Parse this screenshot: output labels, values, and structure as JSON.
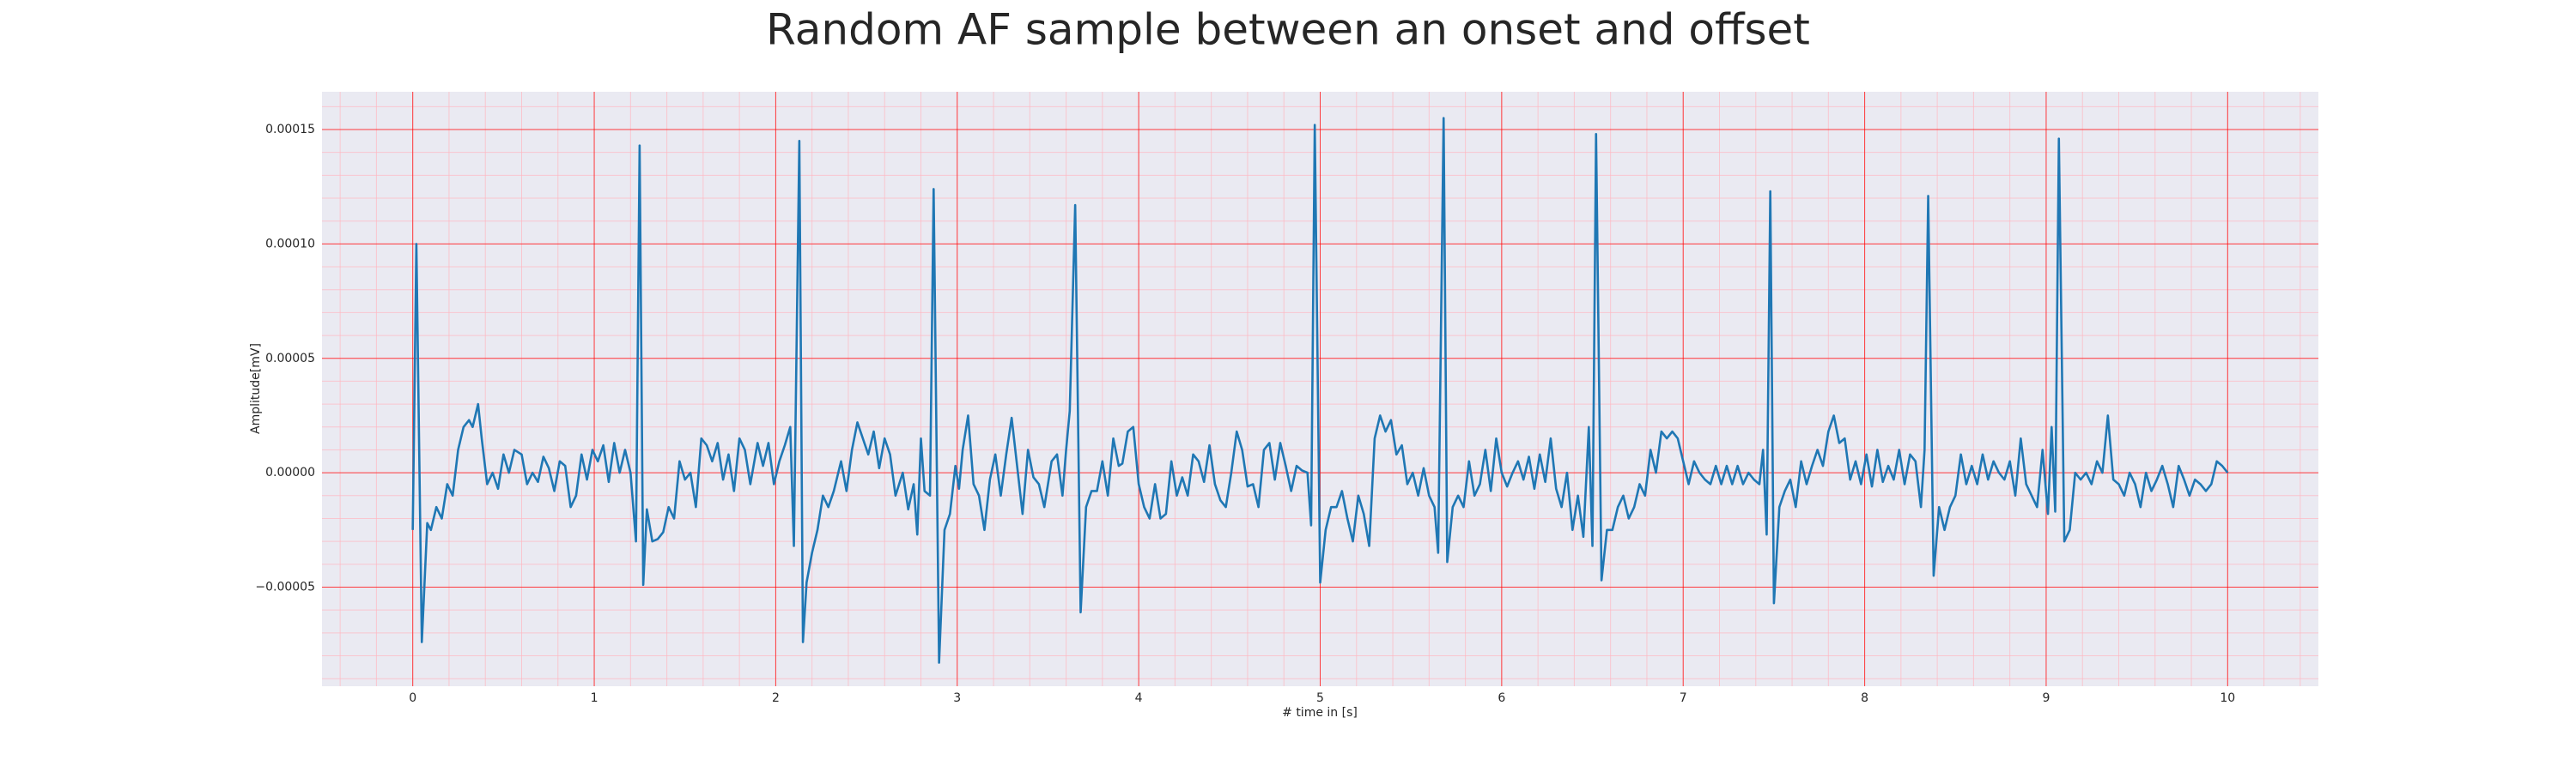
{
  "chart_data": {
    "type": "line",
    "title": "Random AF sample between an onset and offset",
    "xlabel": "# time in [s]",
    "ylabel": "Amplitude[mV]",
    "color": "#1f77b4",
    "grid": true,
    "grid_color": "#ff0000",
    "minor_grid": true,
    "minor_grid_color": "#ffb6c1",
    "background": "#eaeaf2",
    "xlim": [
      -0.5,
      10.5
    ],
    "ylim": [
      -9.33e-05,
      0.0001665
    ],
    "xticks": [
      0,
      1,
      2,
      3,
      4,
      5,
      6,
      7,
      8,
      9,
      10
    ],
    "yticks": [
      {
        "value": -5e-05,
        "label": "−0.00005"
      },
      {
        "value": 0,
        "label": "0.00000"
      },
      {
        "value": 5e-05,
        "label": "0.00005"
      },
      {
        "value": 0.0001,
        "label": "0.00010"
      },
      {
        "value": 0.00015,
        "label": "0.00015"
      }
    ],
    "x": [
      0,
      0.02,
      0.05,
      0.08,
      0.1,
      0.13,
      0.16,
      0.19,
      0.22,
      0.25,
      0.28,
      0.31,
      0.33,
      0.36,
      0.38,
      0.41,
      0.44,
      0.47,
      0.5,
      0.53,
      0.56,
      0.6,
      0.63,
      0.66,
      0.69,
      0.72,
      0.75,
      0.78,
      0.81,
      0.84,
      0.87,
      0.9,
      0.93,
      0.96,
      0.99,
      1.02,
      1.05,
      1.08,
      1.11,
      1.14,
      1.17,
      1.2,
      1.23,
      1.25,
      1.27,
      1.29,
      1.32,
      1.35,
      1.38,
      1.41,
      1.44,
      1.47,
      1.5,
      1.53,
      1.56,
      1.59,
      1.62,
      1.65,
      1.68,
      1.71,
      1.74,
      1.77,
      1.8,
      1.83,
      1.86,
      1.9,
      1.93,
      1.96,
      1.99,
      2.02,
      2.05,
      2.08,
      2.1,
      2.13,
      2.15,
      2.17,
      2.2,
      2.23,
      2.26,
      2.29,
      2.32,
      2.36,
      2.39,
      2.42,
      2.45,
      2.48,
      2.51,
      2.54,
      2.57,
      2.6,
      2.63,
      2.66,
      2.7,
      2.73,
      2.76,
      2.78,
      2.8,
      2.82,
      2.85,
      2.87,
      2.9,
      2.93,
      2.96,
      2.99,
      3.01,
      3.03,
      3.06,
      3.09,
      3.12,
      3.15,
      3.18,
      3.21,
      3.24,
      3.27,
      3.3,
      3.33,
      3.36,
      3.39,
      3.42,
      3.45,
      3.48,
      3.52,
      3.55,
      3.58,
      3.6,
      3.62,
      3.65,
      3.68,
      3.71,
      3.74,
      3.77,
      3.8,
      3.83,
      3.86,
      3.89,
      3.91,
      3.94,
      3.97,
      4.0,
      4.03,
      4.06,
      4.09,
      4.12,
      4.15,
      4.18,
      4.21,
      4.24,
      4.27,
      4.3,
      4.33,
      4.36,
      4.39,
      4.42,
      4.45,
      4.48,
      4.51,
      4.54,
      4.57,
      4.6,
      4.63,
      4.66,
      4.69,
      4.72,
      4.75,
      4.78,
      4.81,
      4.84,
      4.87,
      4.9,
      4.93,
      4.95,
      4.97,
      5.0,
      5.03,
      5.06,
      5.09,
      5.12,
      5.15,
      5.18,
      5.21,
      5.24,
      5.27,
      5.3,
      5.33,
      5.36,
      5.39,
      5.42,
      5.45,
      5.48,
      5.51,
      5.54,
      5.57,
      5.6,
      5.63,
      5.65,
      5.68,
      5.7,
      5.73,
      5.76,
      5.79,
      5.82,
      5.85,
      5.88,
      5.91,
      5.94,
      5.97,
      6.0,
      6.03,
      6.06,
      6.09,
      6.12,
      6.15,
      6.18,
      6.21,
      6.24,
      6.27,
      6.3,
      6.33,
      6.36,
      6.39,
      6.42,
      6.45,
      6.48,
      6.5,
      6.52,
      6.55,
      6.58,
      6.61,
      6.64,
      6.67,
      6.7,
      6.73,
      6.76,
      6.79,
      6.82,
      6.85,
      6.88,
      6.91,
      6.94,
      6.97,
      7.0,
      7.03,
      7.06,
      7.09,
      7.12,
      7.15,
      7.18,
      7.21,
      7.24,
      7.27,
      7.3,
      7.33,
      7.36,
      7.39,
      7.42,
      7.44,
      7.46,
      7.48,
      7.5,
      7.53,
      7.56,
      7.59,
      7.62,
      7.65,
      7.68,
      7.71,
      7.74,
      7.77,
      7.8,
      7.83,
      7.86,
      7.89,
      7.92,
      7.95,
      7.98,
      8.01,
      8.04,
      8.07,
      8.1,
      8.13,
      8.16,
      8.19,
      8.22,
      8.25,
      8.28,
      8.31,
      8.33,
      8.35,
      8.38,
      8.41,
      8.44,
      8.47,
      8.5,
      8.53,
      8.56,
      8.59,
      8.62,
      8.65,
      8.68,
      8.71,
      8.74,
      8.77,
      8.8,
      8.83,
      8.86,
      8.89,
      8.92,
      8.95,
      8.98,
      9.01,
      9.03,
      9.05,
      9.07,
      9.1,
      9.13,
      9.16,
      9.19,
      9.22,
      9.25,
      9.28,
      9.31,
      9.34,
      9.37,
      9.4,
      9.43,
      9.46,
      9.49,
      9.52,
      9.55,
      9.58,
      9.61,
      9.64,
      9.67,
      9.7,
      9.73,
      9.76,
      9.79,
      9.82,
      9.85,
      9.88,
      9.91,
      9.94,
      9.97,
      10.0
    ],
    "values": [
      -2.5e-05,
      0.0001,
      -7.4e-05,
      -2.2e-05,
      -2.5e-05,
      -1.5e-05,
      -2e-05,
      -5e-06,
      -1e-05,
      1e-05,
      2e-05,
      2.3e-05,
      2e-05,
      3e-05,
      1.5e-05,
      -5e-06,
      0,
      -7e-06,
      8e-06,
      0,
      1e-05,
      8e-06,
      -5e-06,
      0,
      -4e-06,
      7e-06,
      2e-06,
      -8e-06,
      5e-06,
      3e-06,
      -1.5e-05,
      -1e-05,
      8e-06,
      -3e-06,
      1e-05,
      5e-06,
      1.2e-05,
      -4e-06,
      1.3e-05,
      0,
      1e-05,
      0,
      -3e-05,
      0.000143,
      -4.9e-05,
      -1.6e-05,
      -3e-05,
      -2.9e-05,
      -2.6e-05,
      -1.5e-05,
      -2e-05,
      5e-06,
      -3e-06,
      0,
      -1.5e-05,
      1.5e-05,
      1.2e-05,
      5e-06,
      1.3e-05,
      -3e-06,
      8e-06,
      -8e-06,
      1.5e-05,
      1e-05,
      -5e-06,
      1.3e-05,
      3e-06,
      1.3e-05,
      -5e-06,
      5e-06,
      1.2e-05,
      2e-05,
      -3.2e-05,
      0.000145,
      -7.4e-05,
      -4.8e-05,
      -3.5e-05,
      -2.5e-05,
      -1e-05,
      -1.5e-05,
      -8e-06,
      5e-06,
      -8e-06,
      1e-05,
      2.2e-05,
      1.5e-05,
      8e-06,
      1.8e-05,
      2e-06,
      1.5e-05,
      8e-06,
      -1e-05,
      0,
      -1.6e-05,
      -5e-06,
      -2.7e-05,
      1.5e-05,
      -8e-06,
      -1e-05,
      0.000124,
      -8.3e-05,
      -2.5e-05,
      -1.8e-05,
      3e-06,
      -7e-06,
      1e-05,
      2.5e-05,
      -5e-06,
      -1e-05,
      -2.5e-05,
      -3e-06,
      8e-06,
      -1e-05,
      8e-06,
      2.4e-05,
      3e-06,
      -1.8e-05,
      1e-05,
      -2e-06,
      -5e-06,
      -1.5e-05,
      5e-06,
      8e-06,
      -1e-05,
      1e-05,
      2.7e-05,
      0.000117,
      -6.1e-05,
      -1.5e-05,
      -8e-06,
      -8e-06,
      5e-06,
      -1e-05,
      1.5e-05,
      3e-06,
      4e-06,
      1.8e-05,
      2e-05,
      -5e-06,
      -1.5e-05,
      -2e-05,
      -5e-06,
      -2e-05,
      -1.8e-05,
      5e-06,
      -1e-05,
      -2e-06,
      -1e-05,
      8e-06,
      5e-06,
      -4e-06,
      1.2e-05,
      -5e-06,
      -1.2e-05,
      -1.5e-05,
      0,
      1.8e-05,
      1e-05,
      -6e-06,
      -5e-06,
      -1.5e-05,
      1e-05,
      1.3e-05,
      -3e-06,
      1.3e-05,
      3e-06,
      -8e-06,
      3e-06,
      1e-06,
      0,
      -2.3e-05,
      0.000152,
      -4.8e-05,
      -2.5e-05,
      -1.5e-05,
      -1.5e-05,
      -8e-06,
      -2e-05,
      -3e-05,
      -1e-05,
      -1.8e-05,
      -3.2e-05,
      1.5e-05,
      2.5e-05,
      1.8e-05,
      2.3e-05,
      8e-06,
      1.2e-05,
      -5e-06,
      0,
      -1e-05,
      2e-06,
      -1e-05,
      -1.5e-05,
      -3.5e-05,
      0.000155,
      -3.9e-05,
      -1.5e-05,
      -1e-05,
      -1.5e-05,
      5e-06,
      -1e-05,
      -5e-06,
      1e-05,
      -8e-06,
      1.5e-05,
      0,
      -6e-06,
      0,
      5e-06,
      -3e-06,
      7e-06,
      -7e-06,
      8e-06,
      -4e-06,
      1.5e-05,
      -7e-06,
      -1.5e-05,
      0,
      -2.5e-05,
      -1e-05,
      -2.8e-05,
      2e-05,
      -3.2e-05,
      0.000148,
      -4.7e-05,
      -2.5e-05,
      -2.5e-05,
      -1.5e-05,
      -1e-05,
      -2e-05,
      -1.5e-05,
      -5e-06,
      -1e-05,
      1e-05,
      0,
      1.8e-05,
      1.5e-05,
      1.8e-05,
      1.5e-05,
      5e-06,
      -5e-06,
      5e-06,
      0,
      -3e-06,
      -5e-06,
      3e-06,
      -5e-06,
      3e-06,
      -5e-06,
      3e-06,
      -5e-06,
      0,
      -3e-06,
      -5e-06,
      1e-05,
      -2.7e-05,
      0.000123,
      -5.7e-05,
      -1.5e-05,
      -8e-06,
      -3e-06,
      -1.5e-05,
      5e-06,
      -5e-06,
      3e-06,
      1e-05,
      3e-06,
      1.8e-05,
      2.5e-05,
      1.3e-05,
      1.5e-05,
      -3e-06,
      5e-06,
      -5e-06,
      8e-06,
      -6e-06,
      1e-05,
      -4e-06,
      3e-06,
      -3e-06,
      1e-05,
      -5e-06,
      8e-06,
      5e-06,
      -1.5e-05,
      1e-05,
      0.000121,
      -4.5e-05,
      -1.5e-05,
      -2.5e-05,
      -1.5e-05,
      -1e-05,
      8e-06,
      -5e-06,
      3e-06,
      -5e-06,
      8e-06,
      -3e-06,
      5e-06,
      0,
      -3e-06,
      5e-06,
      -1e-05,
      1.5e-05,
      -5e-06,
      -1e-05,
      -1.5e-05,
      1e-05,
      -1.8e-05,
      2e-05,
      -1.7e-05,
      0.000146,
      -3e-05,
      -2.5e-05,
      0,
      -3e-06,
      0,
      -5e-06,
      5e-06,
      0,
      2.5e-05,
      -3e-06,
      -5e-06,
      -1e-05,
      0,
      -5e-06,
      -1.5e-05,
      0,
      -8e-06,
      -3e-06,
      3e-06,
      -5e-06,
      -1.5e-05,
      3e-06,
      -3e-06,
      -1e-05,
      -3e-06,
      -5e-06,
      -8e-06,
      -5e-06,
      5e-06,
      3e-06,
      0
    ]
  }
}
